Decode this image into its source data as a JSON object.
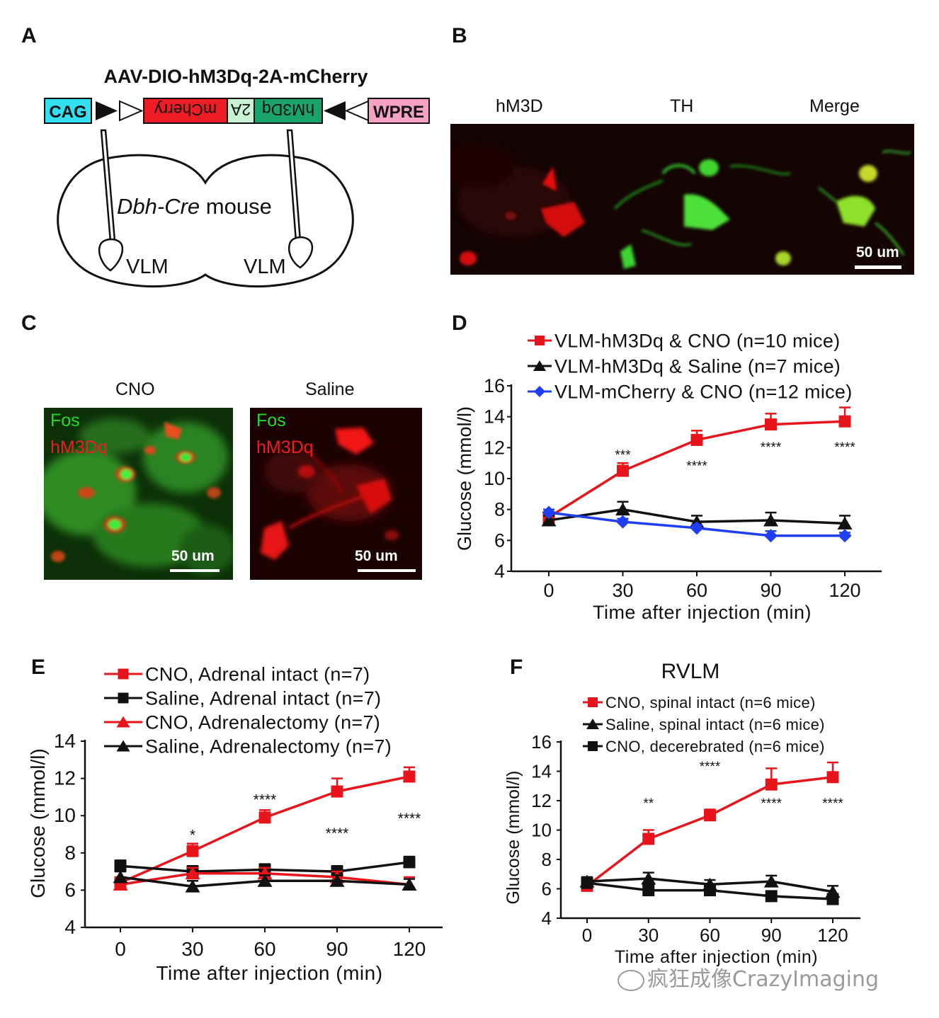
{
  "panels": {
    "A": {
      "label": "A",
      "construct_title": "AAV-DIO-hM3Dq-2A-mCherry",
      "boxes": [
        "CAG",
        "mCherry",
        "2A",
        "hM3Dq",
        "WPRE"
      ],
      "mouse_label_italic": "Dbh-Cre",
      "mouse_label_rest": " mouse",
      "region_labels": [
        "VLM",
        "VLM"
      ],
      "colors": {
        "cag": "#33e0ef",
        "mcherry": "#ee1c24",
        "twoA": "#c8f2d2",
        "hm3dq": "#1aa36b",
        "wpre": "#f7a1c4"
      }
    },
    "B": {
      "label": "B",
      "column_titles": [
        "hM3D",
        "TH",
        "Merge"
      ],
      "scale_bar": "50 um"
    },
    "C": {
      "label": "C",
      "column_titles": [
        "CNO",
        "Saline"
      ],
      "overlay_labels": [
        "Fos",
        "hM3Dq"
      ],
      "scale_bar": "50 um",
      "colors": {
        "fos": "#22dd22",
        "hm3dq": "#ee1c24"
      }
    },
    "D": {
      "label": "D"
    },
    "E": {
      "label": "E"
    },
    "F": {
      "label": "F"
    }
  },
  "watermark": "疯狂成像CrazyImaging",
  "chart_data": [
    {
      "panel": "D",
      "type": "line",
      "title": "",
      "xlabel": "Time after injection (min)",
      "ylabel": "Glucose (mmol/l)",
      "x": [
        0,
        30,
        60,
        90,
        120
      ],
      "xticks": [
        "0",
        "30",
        "60",
        "90",
        "120"
      ],
      "yticks": [
        "4",
        "6",
        "8",
        "10",
        "12",
        "14",
        "16"
      ],
      "ylim": [
        4,
        16
      ],
      "legend_position": "top",
      "series": [
        {
          "name": "VLM-hM3Dq & CNO (n=10 mice)",
          "color": "#e8141c",
          "marker": "square",
          "values": [
            7.5,
            10.5,
            12.5,
            13.5,
            13.7
          ],
          "errors": [
            0.3,
            0.5,
            0.6,
            0.7,
            0.9
          ]
        },
        {
          "name": "VLM-hM3Dq & Saline (n=7 mice)",
          "color": "#111111",
          "marker": "triangle",
          "values": [
            7.3,
            8.0,
            7.2,
            7.3,
            7.1
          ],
          "errors": [
            0.3,
            0.5,
            0.4,
            0.5,
            0.5
          ]
        },
        {
          "name": "VLM-mCherry & CNO (n=12 mice)",
          "color": "#1f3ff0",
          "marker": "diamond",
          "values": [
            7.8,
            7.2,
            6.8,
            6.3,
            6.3
          ],
          "errors": [
            0.2,
            0.2,
            0.2,
            0.3,
            0.2
          ]
        }
      ],
      "annotations": [
        {
          "text": "***",
          "x": 30,
          "y": 11.6
        },
        {
          "text": "****",
          "x": 60,
          "y": 10.9
        },
        {
          "text": "****",
          "x": 90,
          "y": 12.1
        },
        {
          "text": "****",
          "x": 120,
          "y": 12.1
        }
      ]
    },
    {
      "panel": "E",
      "type": "line",
      "title": "",
      "xlabel": "Time after injection (min)",
      "ylabel": "Glucose (mmol/l)",
      "x": [
        0,
        30,
        60,
        90,
        120
      ],
      "xticks": [
        "0",
        "30",
        "60",
        "90",
        "120"
      ],
      "yticks": [
        "4",
        "6",
        "8",
        "10",
        "12",
        "14"
      ],
      "ylim": [
        4,
        14
      ],
      "legend_position": "top",
      "series": [
        {
          "name": "CNO, Adrenal intact (n=7)",
          "color": "#e8141c",
          "marker": "square",
          "values": [
            6.4,
            8.1,
            9.9,
            11.3,
            12.1
          ],
          "errors": [
            0.3,
            0.4,
            0.4,
            0.7,
            0.5
          ]
        },
        {
          "name": "Saline, Adrenal intact (n=7)",
          "color": "#111111",
          "marker": "square",
          "values": [
            7.3,
            7.0,
            7.1,
            7.0,
            7.5
          ],
          "errors": [
            0.3,
            0.3,
            0.3,
            0.3,
            0.3
          ]
        },
        {
          "name": "CNO, Adrenalectomy (n=7)",
          "color": "#e8141c",
          "marker": "triangle",
          "values": [
            6.3,
            6.9,
            6.9,
            6.7,
            6.3
          ],
          "errors": [
            0.3,
            0.3,
            0.3,
            0.3,
            0.4
          ]
        },
        {
          "name": "Saline, Adrenalectomy (n=7)",
          "color": "#111111",
          "marker": "triangle",
          "values": [
            6.7,
            6.2,
            6.5,
            6.5,
            6.3
          ],
          "errors": [
            0.3,
            0.3,
            0.3,
            0.3,
            0.3
          ]
        }
      ],
      "annotations": [
        {
          "text": "*",
          "x": 30,
          "y": 9.0
        },
        {
          "text": "****",
          "x": 60,
          "y": 10.9
        },
        {
          "text": "****",
          "x": 90,
          "y": 9.1
        },
        {
          "text": "****",
          "x": 120,
          "y": 9.9
        }
      ]
    },
    {
      "panel": "F",
      "type": "line",
      "title": "RVLM",
      "xlabel": "Time after injection (min)",
      "ylabel": "Glucose (mmol/l)",
      "x": [
        0,
        30,
        60,
        90,
        120
      ],
      "xticks": [
        "0",
        "30",
        "60",
        "90",
        "120"
      ],
      "yticks": [
        "4",
        "6",
        "8",
        "10",
        "12",
        "14",
        "16"
      ],
      "ylim": [
        4,
        16
      ],
      "legend_position": "top",
      "series": [
        {
          "name": "CNO, spinal intact (n=6 mice)",
          "color": "#e8141c",
          "marker": "square",
          "values": [
            6.2,
            9.4,
            11.0,
            13.1,
            13.6
          ],
          "errors": [
            0.3,
            0.6,
            0.4,
            1.1,
            1.0
          ]
        },
        {
          "name": "Saline, spinal intact (n=6 mice)",
          "color": "#111111",
          "marker": "triangle",
          "values": [
            6.5,
            6.7,
            6.3,
            6.5,
            5.8
          ],
          "errors": [
            0.3,
            0.4,
            0.3,
            0.4,
            0.4
          ]
        },
        {
          "name": "CNO, decerebrated (n=6 mice)",
          "color": "#111111",
          "marker": "square",
          "values": [
            6.4,
            5.9,
            5.9,
            5.5,
            5.3
          ],
          "errors": [
            0.3,
            0.2,
            0.2,
            0.2,
            0.2
          ]
        }
      ],
      "annotations": [
        {
          "text": "**",
          "x": 30,
          "y": 11.9
        },
        {
          "text": "****",
          "x": 60,
          "y": 14.4
        },
        {
          "text": "****",
          "x": 90,
          "y": 11.9
        },
        {
          "text": "****",
          "x": 120,
          "y": 11.9
        }
      ]
    }
  ]
}
